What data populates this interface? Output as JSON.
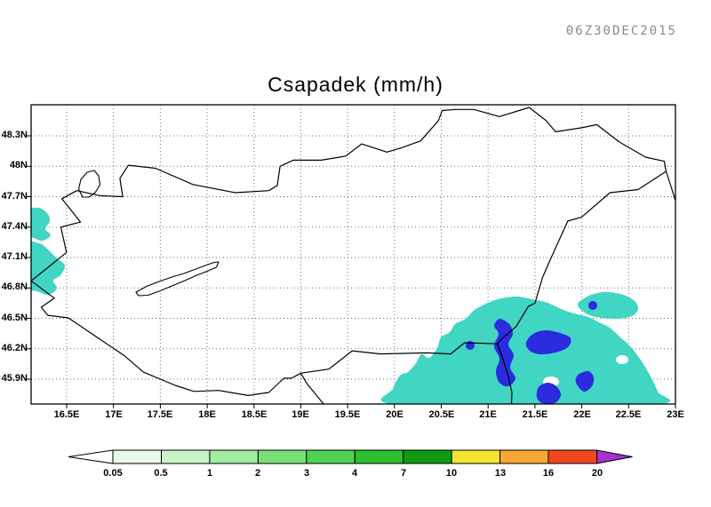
{
  "header": {
    "timestamp": "06Z30DEC2015"
  },
  "chart": {
    "title": "Csapadek (mm/h)",
    "y_axis": {
      "labels": [
        "48.3N",
        "48N",
        "47.7N",
        "47.4N",
        "47.1N",
        "46.8N",
        "46.5N",
        "46.2N",
        "45.9N"
      ]
    },
    "x_axis": {
      "labels": [
        "16.5E",
        "17E",
        "17.5E",
        "18E",
        "18.5E",
        "19E",
        "19.5E",
        "20E",
        "20.5E",
        "21E",
        "21.5E",
        "22E",
        "22.5E",
        "23E"
      ]
    },
    "colorbar": {
      "labels": [
        "0.05",
        "0.5",
        "1",
        "2",
        "3",
        "4",
        "7",
        "10",
        "13",
        "16",
        "20"
      ],
      "below_min_color": "#ffffff",
      "segment_colors": [
        "#e8fae8",
        "#c8f4c8",
        "#a0eca0",
        "#78e078",
        "#50d250",
        "#2cc02c",
        "#0f9b0f",
        "#f2e431",
        "#f7a733",
        "#f04722"
      ],
      "above_max_color": "#a233cc"
    },
    "map_colors": {
      "light_precip": "#40d6c3",
      "heavy_precip": "#2b2be0",
      "border": "#000000",
      "grid": "#707070",
      "frame": "#000000",
      "lake_fill": "#ffffff"
    }
  },
  "chart_data": {
    "type": "heatmap",
    "subtype": "filled-contour precipitation map over Hungary",
    "title": "Csapadek (mm/h)",
    "valid_time": "06Z30DEC2015",
    "xlabel": "",
    "ylabel": "",
    "xlim": [
      16.12,
      23.0
    ],
    "ylim": [
      45.66,
      48.6
    ],
    "x_ticks": [
      "16.5E",
      "17E",
      "17.5E",
      "18E",
      "18.5E",
      "19E",
      "19.5E",
      "20E",
      "20.5E",
      "21E",
      "21.5E",
      "22E",
      "22.5E",
      "23E"
    ],
    "y_ticks": [
      "48.3N",
      "48N",
      "47.7N",
      "47.4N",
      "47.1N",
      "46.8N",
      "46.5N",
      "46.2N",
      "45.9N"
    ],
    "grid": true,
    "legend_position": "bottom",
    "contour_levels_mm_per_h": [
      0.05,
      0.5,
      1,
      2,
      3,
      4,
      7,
      10,
      13,
      16,
      20
    ],
    "legend_colors": [
      "#ffffff",
      "#e8fae8",
      "#c8f4c8",
      "#a0eca0",
      "#78e078",
      "#50d250",
      "#2cc02c",
      "#0f9b0f",
      "#f2e431",
      "#f7a733",
      "#f04722",
      "#a233cc"
    ],
    "shaded_regions": [
      {
        "label": "light precipitation (cyan)",
        "color": "#40d6c3",
        "area": "southeastern Hungary and Romanian border region",
        "lon_range": [
          19.9,
          22.9
        ],
        "lat_range": [
          45.66,
          46.75
        ]
      },
      {
        "label": "heavier precipitation cores (blue)",
        "color": "#2b2be0",
        "area": "embedded cores near 21E-21.6E",
        "lon_range": [
          20.9,
          21.7
        ],
        "lat_range": [
          45.7,
          46.55
        ]
      },
      {
        "label": "light precipitation (cyan)",
        "color": "#40d6c3",
        "area": "western border near 16.2E",
        "lon_range": [
          16.12,
          16.55
        ],
        "lat_range": [
          46.75,
          47.55
        ]
      },
      {
        "label": "light precipitation (cyan)",
        "color": "#40d6c3",
        "area": "detached patch near 22E 46.6N",
        "lon_range": [
          21.85,
          22.55
        ],
        "lat_range": [
          46.5,
          46.75
        ]
      }
    ],
    "map_features": [
      "Hungary country border",
      "neighboring country border segments",
      "Lake Balaton outline",
      "Lake Ferto outline"
    ]
  }
}
